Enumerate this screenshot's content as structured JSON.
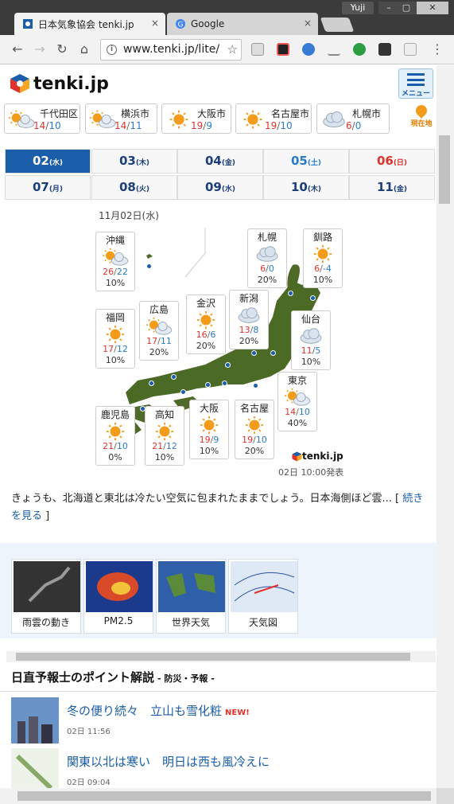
{
  "window": {
    "user": "Yuji"
  },
  "tabs": [
    {
      "title": "日本気象協会 tenki.jp",
      "close": "×"
    },
    {
      "title": "Google",
      "close": "×"
    }
  ],
  "toolbar": {
    "back": "←",
    "forward": "→",
    "reload": "↻",
    "home": "⌂",
    "url": "www.tenki.jp/lite/",
    "star": "☆",
    "menu": "⋮"
  },
  "site": {
    "logo": "tenki.jp",
    "menu_label": "メニュー",
    "location_label": "現在地"
  },
  "cities": [
    {
      "name": "千代田区",
      "hi": "14",
      "lo": "10",
      "icon": "sun-cloud-icon"
    },
    {
      "name": "横浜市",
      "hi": "14",
      "lo": "11",
      "icon": "sun-cloud-icon"
    },
    {
      "name": "大阪市",
      "hi": "19",
      "lo": "9",
      "icon": "sun-icon"
    },
    {
      "name": "名古屋市",
      "hi": "19",
      "lo": "10",
      "icon": "sun-icon"
    },
    {
      "name": "札幌市",
      "hi": "6",
      "lo": "0",
      "icon": "cloud-icon"
    }
  ],
  "dates": [
    {
      "day": "02",
      "dow": "(水)",
      "type": "sel"
    },
    {
      "day": "03",
      "dow": "(木)",
      "type": ""
    },
    {
      "day": "04",
      "dow": "(金)",
      "type": ""
    },
    {
      "day": "05",
      "dow": "(土)",
      "type": "sat"
    },
    {
      "day": "06",
      "dow": "(日)",
      "type": "sun"
    },
    {
      "day": "07",
      "dow": "(月)",
      "type": ""
    },
    {
      "day": "08",
      "dow": "(火)",
      "type": ""
    },
    {
      "day": "09",
      "dow": "(水)",
      "type": ""
    },
    {
      "day": "10",
      "dow": "(木)",
      "type": ""
    },
    {
      "day": "11",
      "dow": "(金)",
      "type": ""
    }
  ],
  "map": {
    "date": "11月02日(水)",
    "logo": "tenki.jp",
    "issued": "02日 10:00発表",
    "regions": [
      {
        "name": "沖縄",
        "hi": "26",
        "lo": "22",
        "pop": "10%",
        "icon": "sun-cloud-icon"
      },
      {
        "name": "札幌",
        "hi": "6",
        "lo": "0",
        "pop": "20%",
        "icon": "cloud-icon"
      },
      {
        "name": "釧路",
        "hi": "6",
        "lo": "-4",
        "pop": "10%",
        "icon": "sun-icon"
      },
      {
        "name": "金沢",
        "hi": "16",
        "lo": "6",
        "pop": "20%",
        "icon": "sun-icon"
      },
      {
        "name": "新潟",
        "hi": "13",
        "lo": "8",
        "pop": "20%",
        "icon": "cloud-icon"
      },
      {
        "name": "広島",
        "hi": "17",
        "lo": "11",
        "pop": "20%",
        "icon": "sun-cloud-icon"
      },
      {
        "name": "福岡",
        "hi": "17",
        "lo": "12",
        "pop": "10%",
        "icon": "sun-icon"
      },
      {
        "name": "仙台",
        "hi": "11",
        "lo": "5",
        "pop": "10%",
        "icon": "cloud-icon"
      },
      {
        "name": "東京",
        "hi": "14",
        "lo": "10",
        "pop": "40%",
        "icon": "sun-cloud-icon"
      },
      {
        "name": "鹿児島",
        "hi": "21",
        "lo": "10",
        "pop": "0%",
        "icon": "sun-icon"
      },
      {
        "name": "高知",
        "hi": "21",
        "lo": "12",
        "pop": "10%",
        "icon": "sun-icon"
      },
      {
        "name": "大阪",
        "hi": "19",
        "lo": "9",
        "pop": "10%",
        "icon": "sun-icon"
      },
      {
        "name": "名古屋",
        "hi": "19",
        "lo": "10",
        "pop": "20%",
        "icon": "sun-icon"
      }
    ]
  },
  "summary": {
    "text": "きょうも、北海道と東北は冷たい空気に包まれたままでしょう。日本海側ほど雲... [ ",
    "link": "続きを見る",
    "close": " ]"
  },
  "thumbs": [
    "雨雲の動き",
    "PM2.5",
    "世界天気",
    "天気図"
  ],
  "section": {
    "title": "日直予報士のポイント解説",
    "sub": "- 防災・予報 -"
  },
  "news": [
    {
      "title": "冬の便り続々　立山も雪化粧",
      "badge": "NEW!",
      "date": "02日 11:56"
    },
    {
      "title": "関東以北は寒い　明日は西も風冷えに",
      "badge": "",
      "date": "02日 09:04"
    }
  ],
  "colors": {
    "brand": "#1a5da9",
    "hi": "#e0322d",
    "lo": "#2a7bc8"
  }
}
